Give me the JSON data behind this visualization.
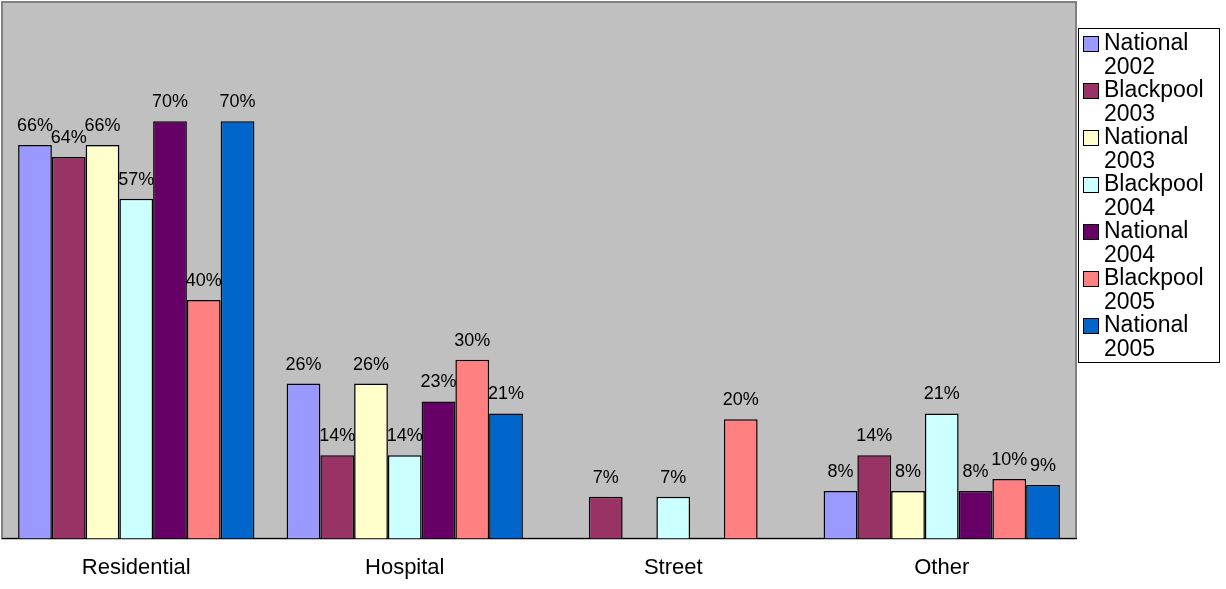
{
  "chart_data": {
    "type": "bar",
    "categories": [
      "Residential",
      "Hospital",
      "Street",
      "Other"
    ],
    "ylim": [
      0,
      90
    ],
    "grid": false,
    "legend": "right",
    "series": [
      {
        "name": "National 2002",
        "color": "#9999ff",
        "values": [
          66,
          26,
          0,
          8
        ],
        "value_labels": [
          "66%",
          "26%",
          null,
          "8%"
        ]
      },
      {
        "name": "Blackpool 2003",
        "color": "#993366",
        "values": [
          64,
          14,
          7,
          14
        ],
        "value_labels": [
          "64%",
          "14%",
          "7%",
          "14%"
        ]
      },
      {
        "name": "National 2003",
        "color": "#ffffcc",
        "values": [
          66,
          26,
          0,
          8
        ],
        "value_labels": [
          "66%",
          "26%",
          null,
          "8%"
        ]
      },
      {
        "name": "Blackpool 2004",
        "color": "#ccffff",
        "values": [
          57,
          14,
          7,
          21
        ],
        "value_labels": [
          "57%",
          "14%",
          "7%",
          "21%"
        ]
      },
      {
        "name": "National 2004",
        "color": "#660066",
        "values": [
          70,
          23,
          0,
          8
        ],
        "value_labels": [
          "70%",
          "23%",
          null,
          "8%"
        ]
      },
      {
        "name": "Blackpool 2005",
        "color": "#ff8080",
        "values": [
          40,
          30,
          20,
          10
        ],
        "value_labels": [
          "40%",
          "30%",
          "20%",
          "10%"
        ]
      },
      {
        "name": "National 2005",
        "color": "#0066cc",
        "values": [
          70,
          21,
          0,
          9
        ],
        "value_labels": [
          "70%",
          "21%",
          null,
          "9%"
        ]
      }
    ]
  }
}
